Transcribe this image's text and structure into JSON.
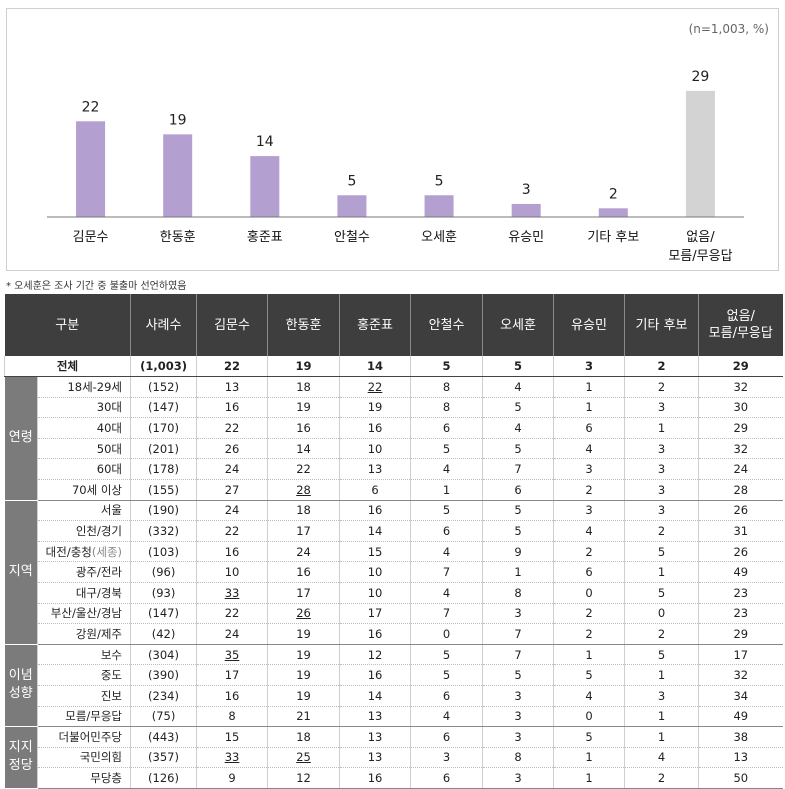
{
  "chart_data": {
    "type": "bar",
    "note_unit": "(n=1,003, %)",
    "categories": [
      "김문수",
      "한동훈",
      "홍준표",
      "안철수",
      "오세훈",
      "유승민",
      "기타 후보",
      "없음/\n모름/무응답"
    ],
    "values": [
      22,
      19,
      14,
      5,
      5,
      3,
      2,
      29
    ],
    "colors": [
      "#b39fd0",
      "#b39fd0",
      "#b39fd0",
      "#b39fd0",
      "#b39fd0",
      "#b39fd0",
      "#b39fd0",
      "#d3d3d3"
    ],
    "ylim": [
      0,
      32
    ]
  },
  "footnote": "* 오세훈은 조사 기간 중 불출마 선언하였음",
  "table": {
    "headers": [
      "구분",
      "사례수",
      "김문수",
      "한동훈",
      "홍준표",
      "안철수",
      "오세훈",
      "유승민",
      "기타 후보",
      "없음/\n모름/무응답"
    ],
    "total": {
      "label": "전체",
      "n": "(1,003)",
      "values": [
        "22",
        "19",
        "14",
        "5",
        "5",
        "3",
        "2",
        "29"
      ]
    },
    "groups": [
      {
        "name": "연령",
        "rows": [
          {
            "label": "18세-29세",
            "n": "(152)",
            "values": [
              "13",
              "18",
              "22",
              "8",
              "4",
              "1",
              "2",
              "32"
            ],
            "underline": [
              2
            ]
          },
          {
            "label": "30대",
            "n": "(147)",
            "values": [
              "16",
              "19",
              "19",
              "8",
              "5",
              "1",
              "3",
              "30"
            ],
            "underline": []
          },
          {
            "label": "40대",
            "n": "(170)",
            "values": [
              "22",
              "16",
              "16",
              "6",
              "4",
              "6",
              "1",
              "29"
            ],
            "underline": []
          },
          {
            "label": "50대",
            "n": "(201)",
            "values": [
              "26",
              "14",
              "10",
              "5",
              "5",
              "4",
              "3",
              "32"
            ],
            "underline": []
          },
          {
            "label": "60대",
            "n": "(178)",
            "values": [
              "24",
              "22",
              "13",
              "4",
              "7",
              "3",
              "3",
              "24"
            ],
            "underline": []
          },
          {
            "label": "70세 이상",
            "n": "(155)",
            "values": [
              "27",
              "28",
              "6",
              "1",
              "6",
              "2",
              "3",
              "28"
            ],
            "underline": [
              1
            ]
          }
        ]
      },
      {
        "name": "지역",
        "rows": [
          {
            "label": "서울",
            "n": "(190)",
            "values": [
              "24",
              "18",
              "16",
              "5",
              "5",
              "3",
              "3",
              "26"
            ],
            "underline": []
          },
          {
            "label": "인천/경기",
            "n": "(332)",
            "values": [
              "22",
              "17",
              "14",
              "6",
              "5",
              "4",
              "2",
              "31"
            ],
            "underline": []
          },
          {
            "label": "대전/충청",
            "label_suffix": "(세종)",
            "n": "(103)",
            "values": [
              "16",
              "24",
              "15",
              "4",
              "9",
              "2",
              "5",
              "26"
            ],
            "underline": []
          },
          {
            "label": "광주/전라",
            "n": "(96)",
            "values": [
              "10",
              "16",
              "10",
              "7",
              "1",
              "6",
              "1",
              "49"
            ],
            "underline": []
          },
          {
            "label": "대구/경북",
            "n": "(93)",
            "values": [
              "33",
              "17",
              "10",
              "4",
              "8",
              "0",
              "5",
              "23"
            ],
            "underline": [
              0
            ]
          },
          {
            "label": "부산/울산/경남",
            "n": "(147)",
            "values": [
              "22",
              "26",
              "17",
              "7",
              "3",
              "2",
              "0",
              "23"
            ],
            "underline": [
              1
            ]
          },
          {
            "label": "강원/제주",
            "n": "(42)",
            "values": [
              "24",
              "19",
              "16",
              "0",
              "7",
              "2",
              "2",
              "29"
            ],
            "underline": []
          }
        ]
      },
      {
        "name": "이념\n성향",
        "rows": [
          {
            "label": "보수",
            "n": "(304)",
            "values": [
              "35",
              "19",
              "12",
              "5",
              "7",
              "1",
              "5",
              "17"
            ],
            "underline": [
              0
            ]
          },
          {
            "label": "중도",
            "n": "(390)",
            "values": [
              "17",
              "19",
              "16",
              "5",
              "5",
              "5",
              "1",
              "32"
            ],
            "underline": []
          },
          {
            "label": "진보",
            "n": "(234)",
            "values": [
              "16",
              "19",
              "14",
              "6",
              "3",
              "4",
              "3",
              "34"
            ],
            "underline": []
          },
          {
            "label": "모름/무응답",
            "n": "(75)",
            "values": [
              "8",
              "21",
              "13",
              "4",
              "3",
              "0",
              "1",
              "49"
            ],
            "underline": []
          }
        ]
      },
      {
        "name": "지지\n정당",
        "rows": [
          {
            "label": "더불어민주당",
            "n": "(443)",
            "values": [
              "15",
              "18",
              "13",
              "6",
              "3",
              "5",
              "1",
              "38"
            ],
            "underline": []
          },
          {
            "label": "국민의힘",
            "n": "(357)",
            "values": [
              "33",
              "25",
              "13",
              "3",
              "8",
              "1",
              "4",
              "13"
            ],
            "underline": [
              0,
              1
            ]
          },
          {
            "label": "무당층",
            "n": "(126)",
            "values": [
              "9",
              "12",
              "16",
              "6",
              "3",
              "1",
              "2",
              "50"
            ],
            "underline": []
          }
        ]
      }
    ]
  }
}
